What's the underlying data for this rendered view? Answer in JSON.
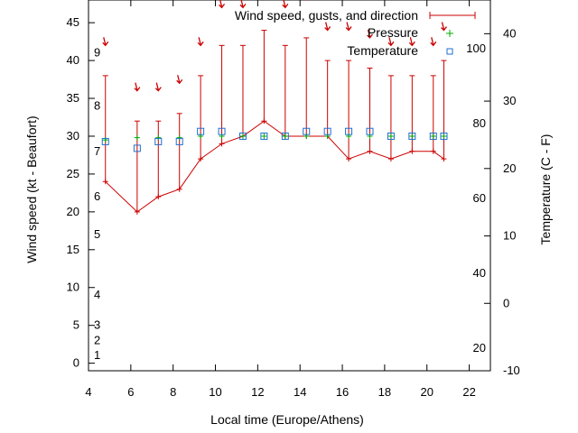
{
  "chart_data": {
    "type": "line",
    "xlabel": "Local time (Europe/Athens)",
    "ylabel": "Wind speed (kt - Beaufort)",
    "y2label": "Temperature (C - F)",
    "xlim": [
      4,
      23
    ],
    "ylim": [
      -1,
      48
    ],
    "y2lim": [
      -10,
      45
    ],
    "x_ticks": [
      4,
      6,
      8,
      10,
      12,
      14,
      16,
      18,
      20,
      22
    ],
    "y_ticks": [
      0,
      5,
      10,
      15,
      20,
      25,
      30,
      35,
      40,
      45
    ],
    "y2_ticks_celsius": [
      -10,
      0,
      10,
      20,
      30,
      40
    ],
    "fahrenheit_labels": [
      {
        "value": 20,
        "label": "20"
      },
      {
        "value": 40,
        "label": "40"
      },
      {
        "value": 60,
        "label": "60"
      },
      {
        "value": 80,
        "label": "80"
      },
      {
        "value": 100,
        "label": "100"
      }
    ],
    "beaufort_labels": [
      {
        "kt": 1,
        "label": "1"
      },
      {
        "kt": 3,
        "label": "2"
      },
      {
        "kt": 5,
        "label": "3"
      },
      {
        "kt": 9,
        "label": "4"
      },
      {
        "kt": 17,
        "label": "5"
      },
      {
        "kt": 22,
        "label": "6"
      },
      {
        "kt": 28,
        "label": "7"
      },
      {
        "kt": 34,
        "label": "8"
      },
      {
        "kt": 41,
        "label": "9"
      }
    ],
    "legend": {
      "placement": "top-right"
    },
    "series": [
      {
        "name": "Wind speed, gusts, and direction",
        "color": "#cc0000",
        "x": [
          4.8,
          6.3,
          7.3,
          8.3,
          9.3,
          10.3,
          11.3,
          12.3,
          13.3,
          14.3,
          15.3,
          16.3,
          17.3,
          18.3,
          19.3,
          20.3,
          20.8
        ],
        "speed": [
          24,
          20,
          22,
          23,
          27,
          29,
          30,
          32,
          30,
          30,
          30,
          27,
          28,
          27,
          28,
          28,
          27
        ],
        "gust": [
          38,
          32,
          32,
          33,
          38,
          42,
          42,
          44,
          42,
          43,
          40,
          40,
          39,
          38,
          38,
          38,
          40
        ]
      },
      {
        "name": "Pressure",
        "color": "#00aa00",
        "x": [
          4.8,
          6.3,
          7.3,
          8.3,
          9.3,
          10.3,
          11.3,
          12.3,
          13.3,
          14.3,
          15.3,
          16.3,
          17.3,
          18.3,
          19.3,
          20.3,
          20.8
        ],
        "y": [
          29.5,
          29.8,
          29.8,
          29.8,
          30,
          30,
          30,
          30,
          30,
          30,
          30,
          30,
          30,
          30,
          30,
          30,
          30
        ]
      },
      {
        "name": "Temperature",
        "color": "#1f6fd1",
        "x": [
          4.8,
          6.3,
          7.3,
          8.3,
          9.3,
          10.3,
          11.3,
          12.3,
          13.3,
          14.3,
          15.3,
          16.3,
          17.3,
          18.3,
          19.3,
          20.3,
          20.8
        ],
        "y": [
          24,
          23,
          24,
          24,
          25.5,
          25.5,
          24.8,
          24.8,
          24.8,
          25.5,
          25.5,
          25.5,
          25.5,
          24.8,
          24.8,
          24.8,
          24.8
        ]
      }
    ],
    "wind_direction_markers": {
      "x": [
        4.8,
        6.3,
        7.3,
        8.3,
        9.3,
        10.3,
        11.3,
        12.3,
        13.3,
        14.3,
        15.3,
        16.3,
        17.3,
        18.3,
        19.3,
        20.3,
        20.8
      ],
      "y": [
        42,
        36,
        36,
        37,
        42,
        47,
        47,
        48.5,
        47,
        48,
        44,
        44,
        43,
        42,
        42,
        42,
        44
      ]
    }
  }
}
